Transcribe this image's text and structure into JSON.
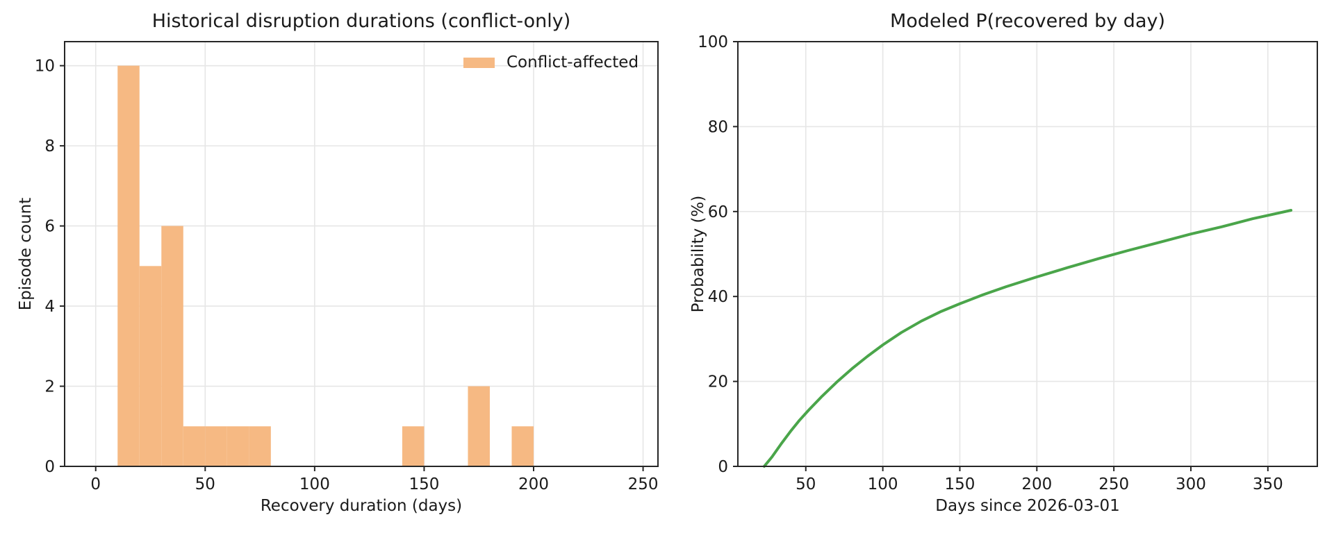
{
  "figure": {
    "background": "#ffffff",
    "text_color": "#1a1a1a",
    "grid_color": "#e6e6e6",
    "spine_color": "#262626"
  },
  "chart_data": [
    {
      "type": "bar",
      "panel": "left",
      "title": "Historical disruption durations (conflict-only)",
      "xlabel": "Recovery duration (days)",
      "ylabel": "Episode count",
      "legend": [
        {
          "label": "Conflict-affected",
          "color": "#f6b983"
        }
      ],
      "legend_position": "upper right",
      "bar_color": "#f6b983",
      "bin_edges": [
        10,
        20,
        30,
        40,
        50,
        60,
        70,
        80,
        90,
        100,
        110,
        120,
        130,
        140,
        150,
        160,
        170,
        180,
        190,
        200
      ],
      "counts": [
        10,
        5,
        6,
        1,
        1,
        1,
        1,
        0,
        0,
        0,
        0,
        0,
        0,
        1,
        0,
        0,
        2,
        0,
        1
      ],
      "xticks": [
        0,
        50,
        100,
        150,
        200,
        250
      ],
      "yticks": [
        0,
        2,
        4,
        6,
        8,
        10
      ],
      "xlim": [
        -14.2,
        256.8
      ],
      "ylim": [
        0,
        10.6
      ],
      "grid": true
    },
    {
      "type": "line",
      "panel": "right",
      "title": "Modeled P(recovered by day)",
      "xlabel": "Days since 2026-03-01",
      "ylabel": "Probability (%)",
      "line_color": "#4aa54a",
      "line_width": 4,
      "points": [
        [
          23,
          0
        ],
        [
          28,
          2.2
        ],
        [
          34,
          5.3
        ],
        [
          40,
          8.2
        ],
        [
          46,
          10.9
        ],
        [
          52,
          13.3
        ],
        [
          60,
          16.3
        ],
        [
          70,
          19.8
        ],
        [
          80,
          23.0
        ],
        [
          90,
          25.9
        ],
        [
          100,
          28.6
        ],
        [
          112,
          31.5
        ],
        [
          125,
          34.2
        ],
        [
          138,
          36.5
        ],
        [
          150,
          38.3
        ],
        [
          165,
          40.4
        ],
        [
          180,
          42.3
        ],
        [
          200,
          44.6
        ],
        [
          220,
          46.8
        ],
        [
          240,
          48.9
        ],
        [
          250,
          49.9
        ],
        [
          260,
          50.9
        ],
        [
          280,
          52.8
        ],
        [
          300,
          54.7
        ],
        [
          320,
          56.4
        ],
        [
          340,
          58.3
        ],
        [
          355,
          59.5
        ],
        [
          365,
          60.3
        ]
      ],
      "xticks": [
        50,
        100,
        150,
        200,
        250,
        300,
        350
      ],
      "yticks": [
        0,
        20,
        40,
        60,
        80,
        100
      ],
      "xlim": [
        5.9,
        382.1
      ],
      "ylim": [
        0,
        100
      ],
      "grid": true
    }
  ]
}
